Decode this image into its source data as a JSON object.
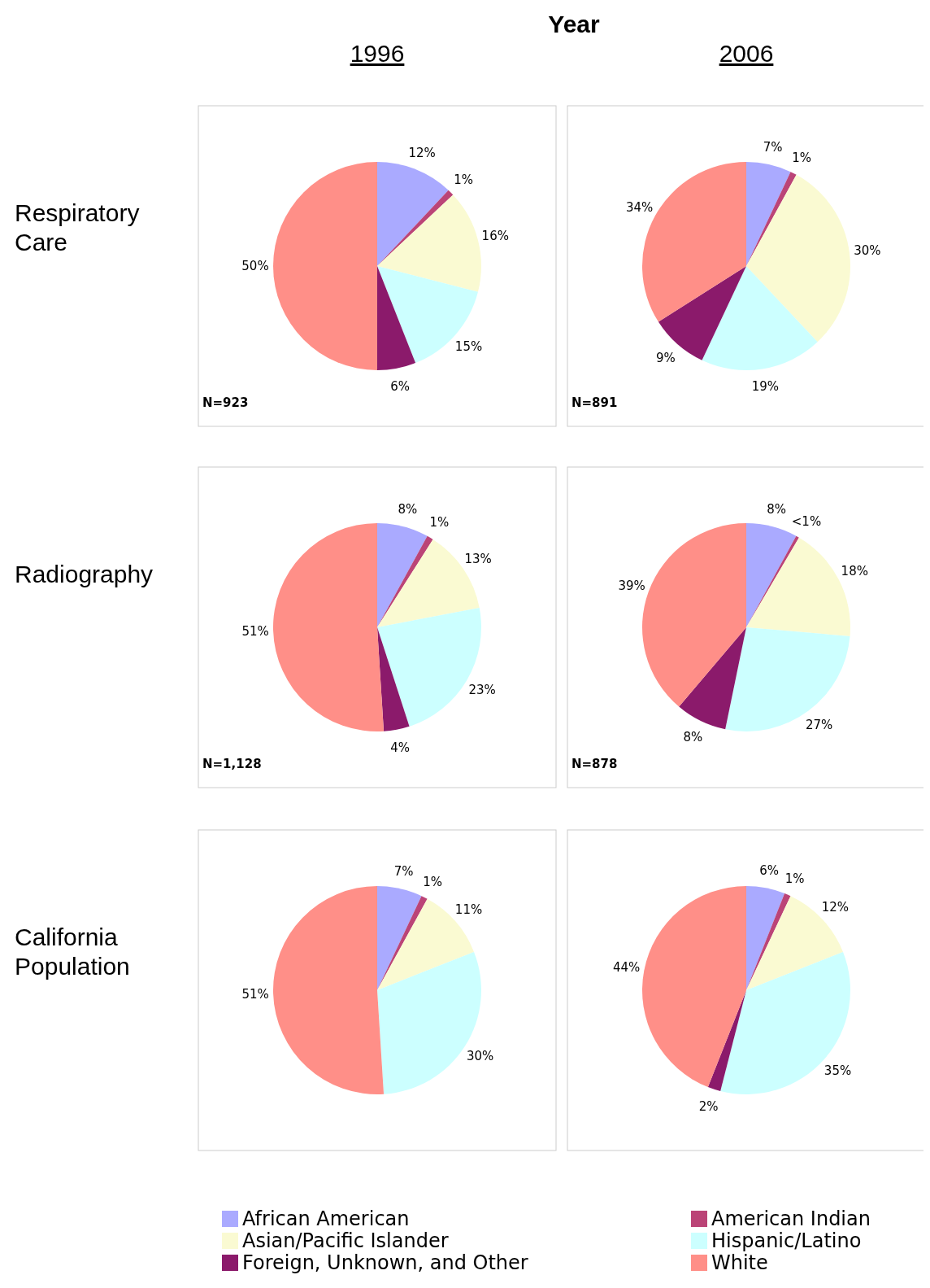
{
  "chart_data": [
    {
      "type": "pie",
      "title": "Year",
      "subtitle": "1996",
      "ylabel": "Respiratory Care",
      "categories": [
        null,
        null,
        null,
        null,
        null,
        null
      ],
      "values": [
        12,
        1,
        16,
        15,
        6,
        50
      ],
      "value_labels": [
        "12%",
        "1%",
        "16%",
        "15%",
        "6%",
        "50%"
      ],
      "colors": [
        "#aaaaff",
        "#bb4477",
        "#fafad2",
        "#ccffff",
        "#8b1a6b",
        "#ff8f88"
      ],
      "annotations": [
        "N=923"
      ]
    },
    {
      "type": "pie",
      "subtitle": "2006",
      "categories": [
        null,
        null,
        null,
        null,
        null,
        null
      ],
      "values": [
        7,
        1,
        30,
        19,
        9,
        34
      ],
      "value_labels": [
        "7%",
        "1%",
        "30%",
        "19%",
        "9%",
        "34%"
      ],
      "colors": [
        "#aaaaff",
        "#bb4477",
        "#fafad2",
        "#ccffff",
        "#8b1a6b",
        "#ff8f88"
      ],
      "annotations": [
        "N=891"
      ]
    },
    {
      "type": "pie",
      "ylabel": "Radiography",
      "categories": [
        null,
        null,
        null,
        null,
        null,
        null
      ],
      "values": [
        8,
        1,
        13,
        23,
        4,
        51
      ],
      "value_labels": [
        "8%",
        "1%",
        "13%",
        "23%",
        "4%",
        "51%"
      ],
      "colors": [
        "#aaaaff",
        "#bb4477",
        "#fafad2",
        "#ccffff",
        "#8b1a6b",
        "#ff8f88"
      ],
      "annotations": [
        "N=1,128"
      ]
    },
    {
      "type": "pie",
      "categories": [
        null,
        null,
        null,
        null,
        null,
        null
      ],
      "values": [
        8,
        0.5,
        18,
        27,
        8,
        39
      ],
      "value_labels": [
        "8%",
        "<1%",
        "18%",
        "27%",
        "8%",
        "39%"
      ],
      "colors": [
        "#aaaaff",
        "#bb4477",
        "#fafad2",
        "#ccffff",
        "#8b1a6b",
        "#ff8f88"
      ],
      "annotations": [
        "N=878"
      ]
    },
    {
      "type": "pie",
      "ylabel": "California Population",
      "categories": [
        null,
        null,
        null,
        null,
        null,
        null
      ],
      "values": [
        7,
        1,
        11,
        30,
        0,
        51
      ],
      "value_labels": [
        "7%",
        "1%",
        "11%",
        "30%",
        null,
        "51%"
      ],
      "colors": [
        "#aaaaff",
        "#bb4477",
        "#fafad2",
        "#ccffff",
        "#8b1a6b",
        "#ff8f88"
      ]
    },
    {
      "type": "pie",
      "categories": [
        "African American",
        "American Indian",
        "Asian/Pacific Islander",
        "Hispanic/Latino",
        "Foreign, Unknown, and Other",
        "White"
      ],
      "values": [
        6,
        1,
        12,
        35,
        2,
        44
      ],
      "value_labels": [
        "6%",
        "1%",
        "12%",
        "35%",
        "2%",
        "44%"
      ],
      "colors": [
        "#aaaaff",
        "#bb4477",
        "#fafad2",
        "#ccffff",
        "#8b1a6b",
        "#ff8f88"
      ],
      "legend": "bottom"
    }
  ]
}
